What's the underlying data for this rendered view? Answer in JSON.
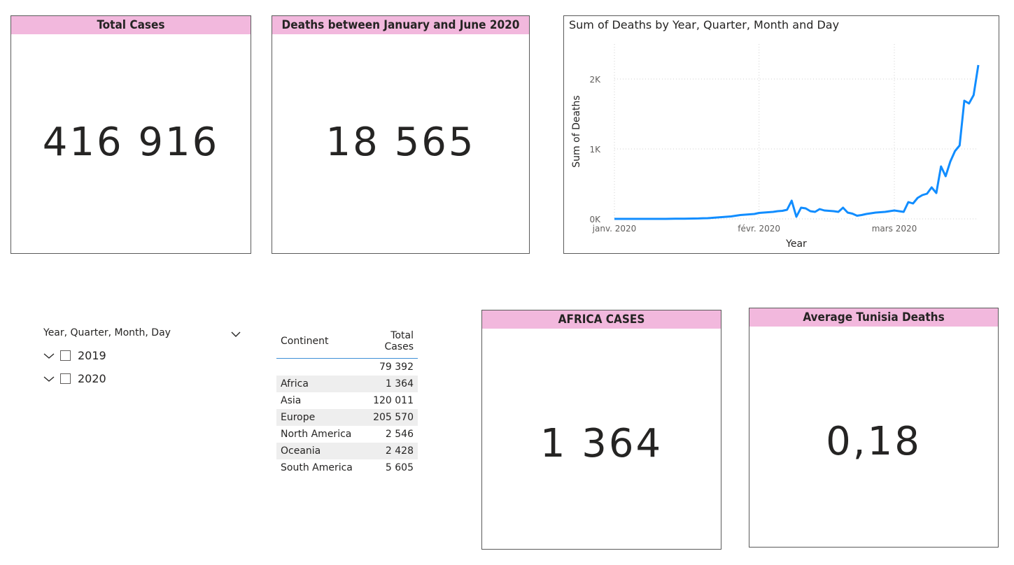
{
  "colors": {
    "header_bg": "#f2b8dd",
    "line": "#118dff",
    "border": "#5a5a5a"
  },
  "cards": {
    "total_cases": {
      "title": "Total Cases",
      "value": "416 916"
    },
    "deaths_jan_june": {
      "title": "Deaths between January and June 2020",
      "value": "18 565"
    },
    "africa_cases": {
      "title": "AFRICA CASES",
      "value": "1 364"
    },
    "avg_tunisia_deaths": {
      "title": "Average Tunisia Deaths",
      "value": "0,18"
    }
  },
  "chart_data": {
    "type": "line",
    "title": "Sum of Deaths by Year, Quarter, Month and Day",
    "xlabel": "Year",
    "ylabel": "Sum of Deaths",
    "x_ticks": [
      "janv. 2020",
      "févr. 2020",
      "mars 2020"
    ],
    "y_ticks": [
      "0K",
      "1K",
      "2K"
    ],
    "ylim": [
      0,
      2500
    ],
    "grid": true,
    "series": [
      {
        "values": [
          0,
          0,
          0,
          0,
          0,
          0,
          0,
          0,
          0,
          0,
          0,
          0,
          1,
          2,
          2,
          3,
          4,
          5,
          6,
          9,
          10,
          15,
          20,
          25,
          30,
          35,
          45,
          55,
          60,
          65,
          70,
          85,
          90,
          95,
          100,
          110,
          115,
          130,
          260,
          30,
          160,
          150,
          110,
          100,
          140,
          120,
          115,
          110,
          100,
          160,
          90,
          75,
          45,
          55,
          70,
          80,
          90,
          95,
          100,
          110,
          120,
          110,
          100,
          240,
          220,
          300,
          340,
          360,
          450,
          370,
          750,
          610,
          820,
          970,
          1050,
          1690,
          1650,
          1770,
          2200
        ]
      }
    ]
  },
  "slicer": {
    "title": "Year, Quarter, Month, Day",
    "items": [
      "2019",
      "2020"
    ]
  },
  "table": {
    "headers": [
      "Continent",
      "Total Cases"
    ],
    "rows": [
      [
        "",
        "79 392"
      ],
      [
        "Africa",
        "1 364"
      ],
      [
        "Asia",
        "120 011"
      ],
      [
        "Europe",
        "205 570"
      ],
      [
        "North America",
        "2 546"
      ],
      [
        "Oceania",
        "2 428"
      ],
      [
        "South America",
        "5 605"
      ]
    ]
  }
}
